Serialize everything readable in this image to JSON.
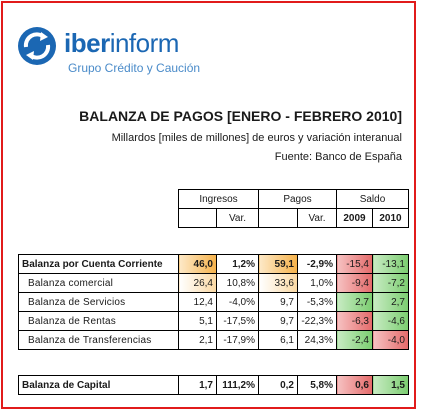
{
  "logo": {
    "name_bold": "iber",
    "name_rest": "inform",
    "subtitle": "Grupo Crédito y Caución"
  },
  "title": "BALANZA DE PAGOS [ENERO - FEBRERO 2010]",
  "subtitle": "Millardos [miles de millones] de euros y variación interanual",
  "source": "Fuente: Banco de España",
  "header": {
    "ingresos": "Ingresos",
    "pagos": "Pagos",
    "saldo": "Saldo",
    "var": "Var.",
    "y2009": "2009",
    "y2010": "2010"
  },
  "rows": [
    {
      "label": "Balanza por Cuenta Corriente",
      "ing": "46,0",
      "ing_var": "1,2%",
      "pag": "59,1",
      "pag_var": "-2,9%",
      "s2009": "-15,4",
      "s2010": "-13,1"
    },
    {
      "label": "Balanza comercial",
      "ing": "26,4",
      "ing_var": "10,8%",
      "pag": "33,6",
      "pag_var": "1,0%",
      "s2009": "-9,4",
      "s2010": "-7,2"
    },
    {
      "label": "Balanza de Servicios",
      "ing": "12,4",
      "ing_var": "-4,0%",
      "pag": "9,7",
      "pag_var": "-5,3%",
      "s2009": "2,7",
      "s2010": "2,7"
    },
    {
      "label": "Balanza de Rentas",
      "ing": "5,1",
      "ing_var": "-17,5%",
      "pag": "9,7",
      "pag_var": "-22,3%",
      "s2009": "-6,3",
      "s2010": "-4,6"
    },
    {
      "label": "Balanza de Transferencias",
      "ing": "2,1",
      "ing_var": "-17,9%",
      "pag": "6,1",
      "pag_var": "24,3%",
      "s2009": "-2,4",
      "s2010": "-4,0"
    }
  ],
  "capital": {
    "label": "Balanza de Capital",
    "ing": "1,7",
    "ing_var": "111,2%",
    "pag": "0,2",
    "pag_var": "5,8%",
    "s2009": "0,6",
    "s2010": "1,5"
  }
}
